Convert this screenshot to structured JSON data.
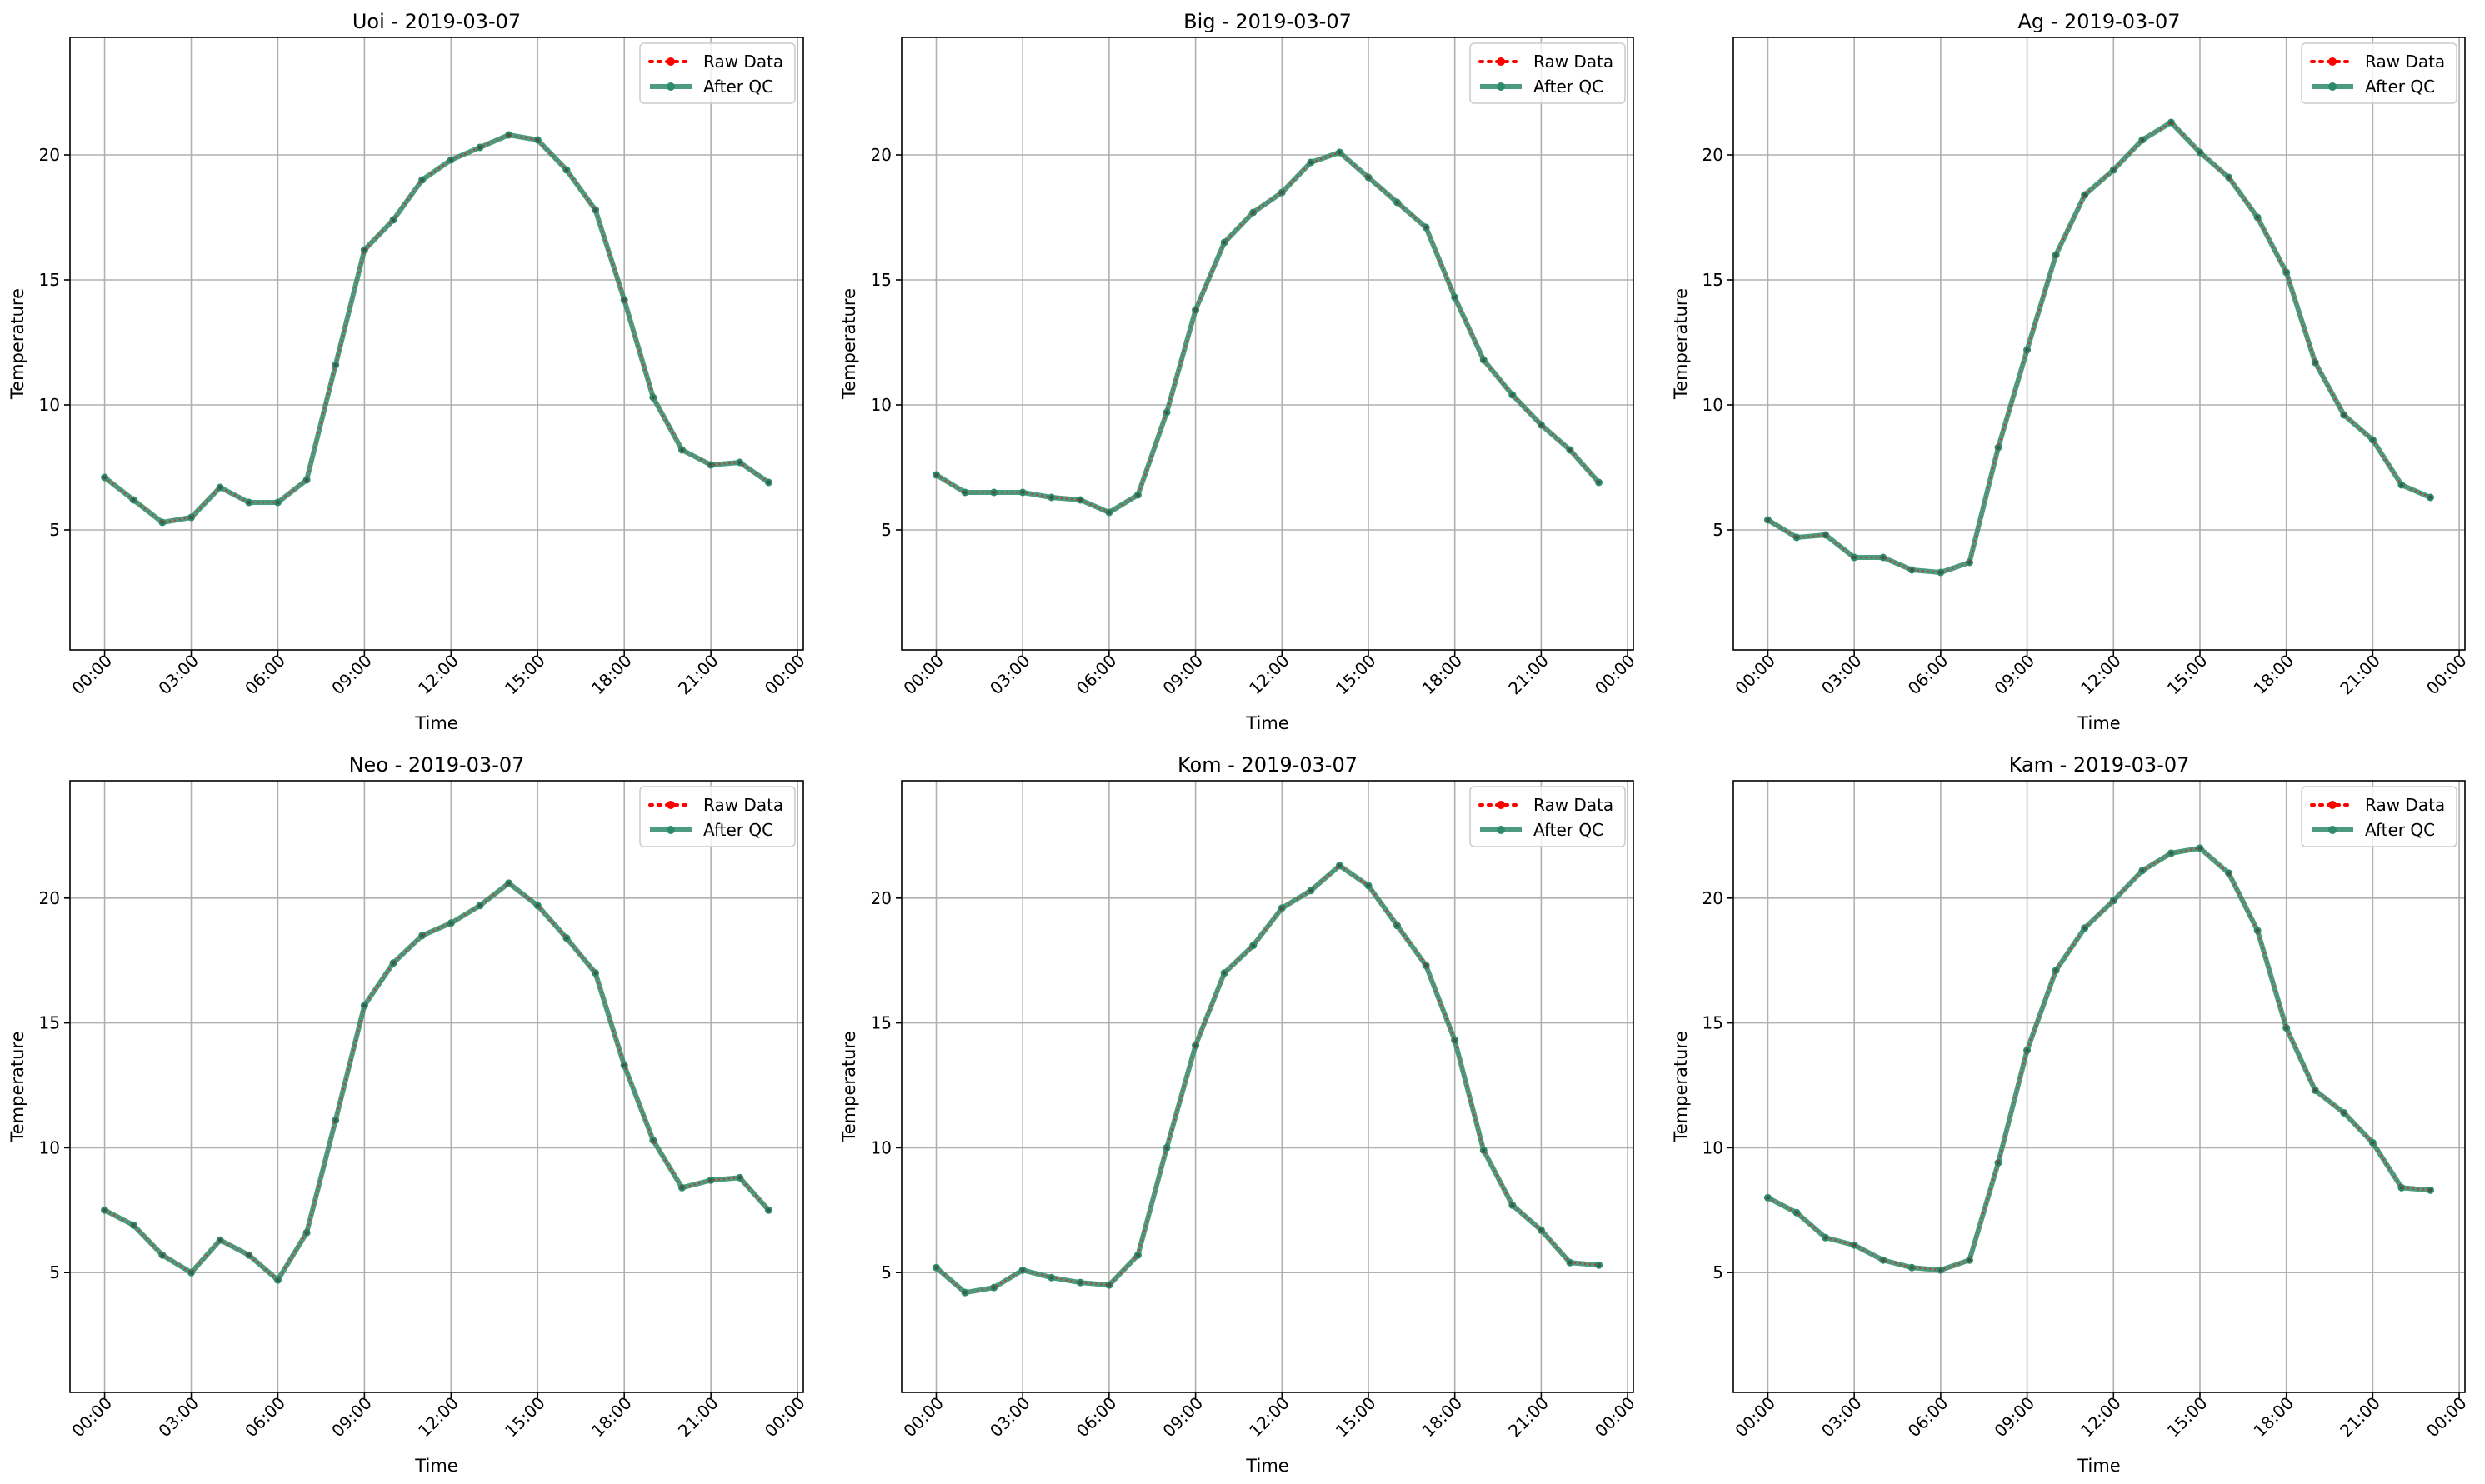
{
  "figure": {
    "legend_raw_label": "Raw Data",
    "legend_qc_label": "After QC",
    "colors": {
      "raw": "#ff0000",
      "qc": "#2e8b6a",
      "grid": "#b0b0b0",
      "axis": "#000000"
    }
  },
  "chart_data": [
    {
      "type": "line",
      "title": "Uoi - 2019-03-07",
      "xlabel": "Time",
      "ylabel": "Temperature",
      "x_ticks": [
        "00:00",
        "03:00",
        "06:00",
        "09:00",
        "12:00",
        "15:00",
        "18:00",
        "21:00",
        "00:00"
      ],
      "x_tick_hours": [
        0,
        3,
        6,
        9,
        12,
        15,
        18,
        21,
        24
      ],
      "x": [
        "00:00",
        "01:00",
        "02:00",
        "03:00",
        "04:00",
        "05:00",
        "06:00",
        "07:00",
        "08:00",
        "09:00",
        "10:00",
        "11:00",
        "12:00",
        "13:00",
        "14:00",
        "15:00",
        "16:00",
        "17:00",
        "18:00",
        "19:00",
        "20:00",
        "21:00",
        "22:00",
        "23:00"
      ],
      "xlim": [
        -1.2,
        24.2
      ],
      "ylim": [
        0.2,
        24.7
      ],
      "y_ticks": [
        5,
        10,
        15,
        20
      ],
      "grid": true,
      "legend": "top-right",
      "series": [
        {
          "name": "Raw Data",
          "values": [
            7.1,
            6.2,
            5.3,
            5.5,
            6.7,
            6.1,
            6.1,
            7.0,
            11.6,
            16.2,
            17.4,
            19.0,
            19.8,
            20.3,
            20.8,
            20.6,
            19.4,
            17.8,
            14.2,
            10.3,
            8.2,
            7.6,
            7.7,
            6.9
          ]
        },
        {
          "name": "After QC",
          "values": [
            7.1,
            6.2,
            5.3,
            5.5,
            6.7,
            6.1,
            6.1,
            7.0,
            11.6,
            16.2,
            17.4,
            19.0,
            19.8,
            20.3,
            20.8,
            20.6,
            19.4,
            17.8,
            14.2,
            10.3,
            8.2,
            7.6,
            7.7,
            6.9
          ]
        }
      ]
    },
    {
      "type": "line",
      "title": "Big - 2019-03-07",
      "xlabel": "Time",
      "ylabel": "Temperature",
      "x_ticks": [
        "00:00",
        "03:00",
        "06:00",
        "09:00",
        "12:00",
        "15:00",
        "18:00",
        "21:00",
        "00:00"
      ],
      "x_tick_hours": [
        0,
        3,
        6,
        9,
        12,
        15,
        18,
        21,
        24
      ],
      "x": [
        "00:00",
        "01:00",
        "02:00",
        "03:00",
        "04:00",
        "05:00",
        "06:00",
        "07:00",
        "08:00",
        "09:00",
        "10:00",
        "11:00",
        "12:00",
        "13:00",
        "14:00",
        "15:00",
        "16:00",
        "17:00",
        "18:00",
        "19:00",
        "20:00",
        "21:00",
        "22:00",
        "23:00"
      ],
      "xlim": [
        -1.2,
        24.2
      ],
      "ylim": [
        0.2,
        24.7
      ],
      "y_ticks": [
        5,
        10,
        15,
        20
      ],
      "grid": true,
      "legend": "top-right",
      "series": [
        {
          "name": "Raw Data",
          "values": [
            7.2,
            6.5,
            6.5,
            6.5,
            6.3,
            6.2,
            5.7,
            6.4,
            9.7,
            13.8,
            16.5,
            17.7,
            18.5,
            19.7,
            20.1,
            19.1,
            18.1,
            17.1,
            14.3,
            11.8,
            10.4,
            9.2,
            8.2,
            6.9
          ]
        },
        {
          "name": "After QC",
          "values": [
            7.2,
            6.5,
            6.5,
            6.5,
            6.3,
            6.2,
            5.7,
            6.4,
            9.7,
            13.8,
            16.5,
            17.7,
            18.5,
            19.7,
            20.1,
            19.1,
            18.1,
            17.1,
            14.3,
            11.8,
            10.4,
            9.2,
            8.2,
            6.9
          ]
        }
      ]
    },
    {
      "type": "line",
      "title": "Ag - 2019-03-07",
      "xlabel": "Time",
      "ylabel": "Temperature",
      "x_ticks": [
        "00:00",
        "03:00",
        "06:00",
        "09:00",
        "12:00",
        "15:00",
        "18:00",
        "21:00",
        "00:00"
      ],
      "x_tick_hours": [
        0,
        3,
        6,
        9,
        12,
        15,
        18,
        21,
        24
      ],
      "x": [
        "00:00",
        "01:00",
        "02:00",
        "03:00",
        "04:00",
        "05:00",
        "06:00",
        "07:00",
        "08:00",
        "09:00",
        "10:00",
        "11:00",
        "12:00",
        "13:00",
        "14:00",
        "15:00",
        "16:00",
        "17:00",
        "18:00",
        "19:00",
        "20:00",
        "21:00",
        "22:00",
        "23:00"
      ],
      "xlim": [
        -1.2,
        24.2
      ],
      "ylim": [
        0.2,
        24.7
      ],
      "y_ticks": [
        5,
        10,
        15,
        20
      ],
      "grid": true,
      "legend": "top-right",
      "series": [
        {
          "name": "Raw Data",
          "values": [
            5.4,
            4.7,
            4.8,
            3.9,
            3.9,
            3.4,
            3.3,
            3.7,
            8.3,
            12.2,
            16.0,
            18.4,
            19.4,
            20.6,
            21.3,
            20.1,
            19.1,
            17.5,
            15.3,
            11.7,
            9.6,
            8.6,
            6.8,
            6.3
          ]
        },
        {
          "name": "After QC",
          "values": [
            5.4,
            4.7,
            4.8,
            3.9,
            3.9,
            3.4,
            3.3,
            3.7,
            8.3,
            12.2,
            16.0,
            18.4,
            19.4,
            20.6,
            21.3,
            20.1,
            19.1,
            17.5,
            15.3,
            11.7,
            9.6,
            8.6,
            6.8,
            6.3
          ]
        }
      ]
    },
    {
      "type": "line",
      "title": "Neo - 2019-03-07",
      "xlabel": "Time",
      "ylabel": "Temperature",
      "x_ticks": [
        "00:00",
        "03:00",
        "06:00",
        "09:00",
        "12:00",
        "15:00",
        "18:00",
        "21:00",
        "00:00"
      ],
      "x_tick_hours": [
        0,
        3,
        6,
        9,
        12,
        15,
        18,
        21,
        24
      ],
      "x": [
        "00:00",
        "01:00",
        "02:00",
        "03:00",
        "04:00",
        "05:00",
        "06:00",
        "07:00",
        "08:00",
        "09:00",
        "10:00",
        "11:00",
        "12:00",
        "13:00",
        "14:00",
        "15:00",
        "16:00",
        "17:00",
        "18:00",
        "19:00",
        "20:00",
        "21:00",
        "22:00",
        "23:00"
      ],
      "xlim": [
        -1.2,
        24.2
      ],
      "ylim": [
        0.2,
        24.7
      ],
      "y_ticks": [
        5,
        10,
        15,
        20
      ],
      "grid": true,
      "legend": "top-right",
      "series": [
        {
          "name": "Raw Data",
          "values": [
            7.5,
            6.9,
            5.7,
            5.0,
            6.3,
            5.7,
            4.7,
            6.6,
            11.1,
            15.7,
            17.4,
            18.5,
            19.0,
            19.7,
            20.6,
            19.7,
            18.4,
            17.0,
            13.3,
            10.3,
            8.4,
            8.7,
            8.8,
            7.5
          ]
        },
        {
          "name": "After QC",
          "values": [
            7.5,
            6.9,
            5.7,
            5.0,
            6.3,
            5.7,
            4.7,
            6.6,
            11.1,
            15.7,
            17.4,
            18.5,
            19.0,
            19.7,
            20.6,
            19.7,
            18.4,
            17.0,
            13.3,
            10.3,
            8.4,
            8.7,
            8.8,
            7.5
          ]
        }
      ]
    },
    {
      "type": "line",
      "title": "Kom - 2019-03-07",
      "xlabel": "Time",
      "ylabel": "Temperature",
      "x_ticks": [
        "00:00",
        "03:00",
        "06:00",
        "09:00",
        "12:00",
        "15:00",
        "18:00",
        "21:00",
        "00:00"
      ],
      "x_tick_hours": [
        0,
        3,
        6,
        9,
        12,
        15,
        18,
        21,
        24
      ],
      "x": [
        "00:00",
        "01:00",
        "02:00",
        "03:00",
        "04:00",
        "05:00",
        "06:00",
        "07:00",
        "08:00",
        "09:00",
        "10:00",
        "11:00",
        "12:00",
        "13:00",
        "14:00",
        "15:00",
        "16:00",
        "17:00",
        "18:00",
        "19:00",
        "20:00",
        "21:00",
        "22:00",
        "23:00"
      ],
      "xlim": [
        -1.2,
        24.2
      ],
      "ylim": [
        0.2,
        24.7
      ],
      "y_ticks": [
        5,
        10,
        15,
        20
      ],
      "grid": true,
      "legend": "top-right",
      "series": [
        {
          "name": "Raw Data",
          "values": [
            5.2,
            4.2,
            4.4,
            5.1,
            4.8,
            4.6,
            4.5,
            5.7,
            10.0,
            14.1,
            17.0,
            18.1,
            19.6,
            20.3,
            21.3,
            20.5,
            18.9,
            17.3,
            14.3,
            9.9,
            7.7,
            6.7,
            5.4,
            5.3
          ]
        },
        {
          "name": "After QC",
          "values": [
            5.2,
            4.2,
            4.4,
            5.1,
            4.8,
            4.6,
            4.5,
            5.7,
            10.0,
            14.1,
            17.0,
            18.1,
            19.6,
            20.3,
            21.3,
            20.5,
            18.9,
            17.3,
            14.3,
            9.9,
            7.7,
            6.7,
            5.4,
            5.3
          ]
        }
      ]
    },
    {
      "type": "line",
      "title": "Kam - 2019-03-07",
      "xlabel": "Time",
      "ylabel": "Temperature",
      "x_ticks": [
        "00:00",
        "03:00",
        "06:00",
        "09:00",
        "12:00",
        "15:00",
        "18:00",
        "21:00",
        "00:00"
      ],
      "x_tick_hours": [
        0,
        3,
        6,
        9,
        12,
        15,
        18,
        21,
        24
      ],
      "x": [
        "00:00",
        "01:00",
        "02:00",
        "03:00",
        "04:00",
        "05:00",
        "06:00",
        "07:00",
        "08:00",
        "09:00",
        "10:00",
        "11:00",
        "12:00",
        "13:00",
        "14:00",
        "15:00",
        "16:00",
        "17:00",
        "18:00",
        "19:00",
        "20:00",
        "21:00",
        "22:00",
        "23:00"
      ],
      "xlim": [
        -1.2,
        24.2
      ],
      "ylim": [
        0.2,
        24.7
      ],
      "y_ticks": [
        5,
        10,
        15,
        20
      ],
      "grid": true,
      "legend": "top-right",
      "series": [
        {
          "name": "Raw Data",
          "values": [
            8.0,
            7.4,
            6.4,
            6.1,
            5.5,
            5.2,
            5.1,
            5.5,
            9.4,
            13.9,
            17.1,
            18.8,
            19.9,
            21.1,
            21.8,
            22.0,
            21.0,
            18.7,
            14.8,
            12.3,
            11.4,
            10.2,
            8.4,
            8.3
          ]
        },
        {
          "name": "After QC",
          "values": [
            8.0,
            7.4,
            6.4,
            6.1,
            5.5,
            5.2,
            5.1,
            5.5,
            9.4,
            13.9,
            17.1,
            18.8,
            19.9,
            21.1,
            21.8,
            22.0,
            21.0,
            18.7,
            14.8,
            12.3,
            11.4,
            10.2,
            8.4,
            8.3
          ]
        }
      ]
    }
  ]
}
